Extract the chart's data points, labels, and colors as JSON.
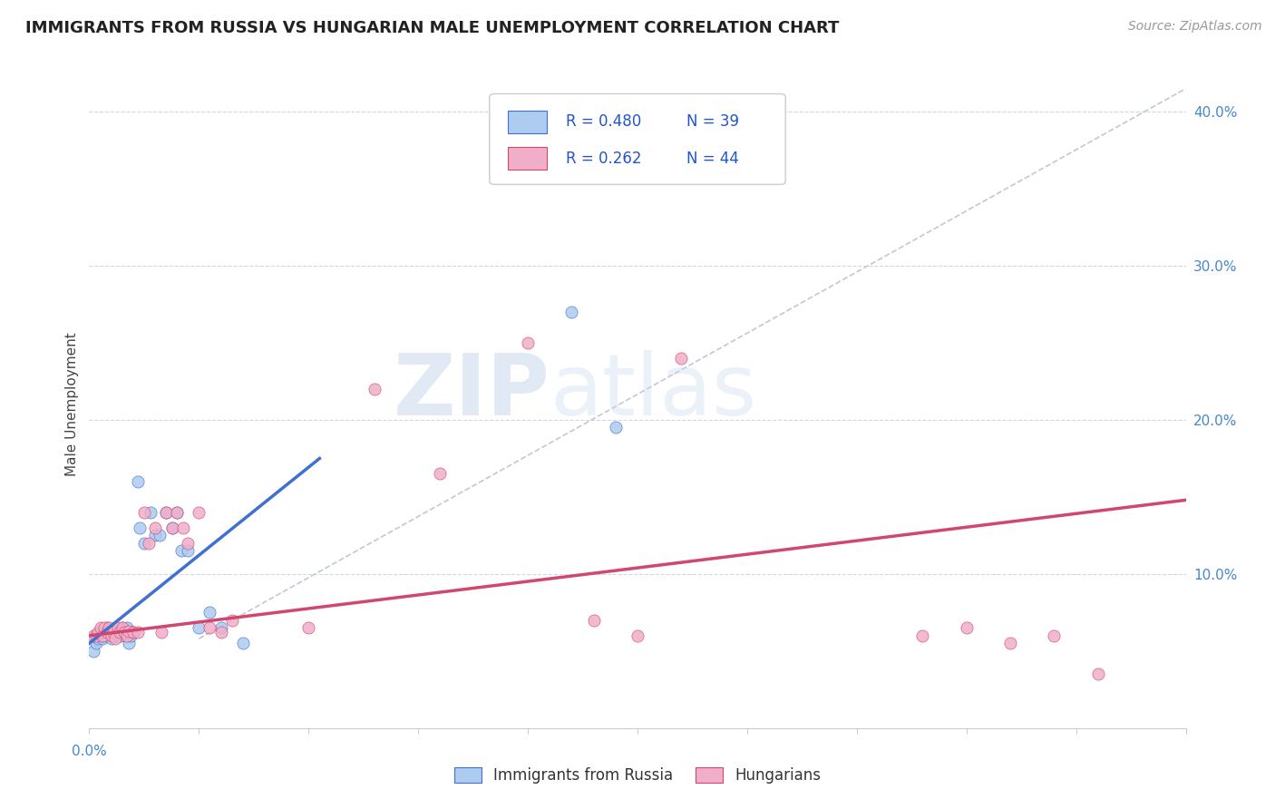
{
  "title": "IMMIGRANTS FROM RUSSIA VS HUNGARIAN MALE UNEMPLOYMENT CORRELATION CHART",
  "source": "Source: ZipAtlas.com",
  "ylabel": "Male Unemployment",
  "color_blue": "#aecbf0",
  "color_pink": "#f0aec8",
  "color_blue_line": "#4070d0",
  "color_pink_line": "#d04870",
  "color_dashed": "#c0c8d8",
  "xlim": [
    0.0,
    0.5
  ],
  "ylim": [
    0.0,
    0.42
  ],
  "legend_r1": "R = 0.480",
  "legend_n1": "N = 39",
  "legend_r2": "R = 0.262",
  "legend_n2": "N = 44",
  "right_yticks": [
    0.1,
    0.2,
    0.3,
    0.4
  ],
  "right_yticklabels": [
    "10.0%",
    "20.0%",
    "30.0%",
    "40.0%"
  ],
  "blue_scatter_x": [
    0.002,
    0.003,
    0.004,
    0.005,
    0.005,
    0.006,
    0.007,
    0.007,
    0.008,
    0.009,
    0.01,
    0.011,
    0.012,
    0.012,
    0.013,
    0.014,
    0.015,
    0.016,
    0.017,
    0.018,
    0.019,
    0.02,
    0.022,
    0.023,
    0.025,
    0.028,
    0.03,
    0.032,
    0.035,
    0.038,
    0.04,
    0.042,
    0.045,
    0.05,
    0.055,
    0.06,
    0.07,
    0.22,
    0.24
  ],
  "blue_scatter_y": [
    0.05,
    0.055,
    0.058,
    0.06,
    0.062,
    0.058,
    0.062,
    0.06,
    0.065,
    0.062,
    0.058,
    0.063,
    0.062,
    0.06,
    0.062,
    0.06,
    0.065,
    0.06,
    0.065,
    0.055,
    0.06,
    0.062,
    0.16,
    0.13,
    0.12,
    0.14,
    0.125,
    0.125,
    0.14,
    0.13,
    0.14,
    0.115,
    0.115,
    0.065,
    0.075,
    0.065,
    0.055,
    0.27,
    0.195
  ],
  "pink_scatter_x": [
    0.002,
    0.003,
    0.004,
    0.005,
    0.006,
    0.007,
    0.008,
    0.009,
    0.01,
    0.011,
    0.012,
    0.013,
    0.014,
    0.015,
    0.016,
    0.017,
    0.018,
    0.02,
    0.022,
    0.025,
    0.027,
    0.03,
    0.033,
    0.035,
    0.038,
    0.04,
    0.043,
    0.045,
    0.05,
    0.055,
    0.06,
    0.065,
    0.1,
    0.13,
    0.16,
    0.2,
    0.23,
    0.25,
    0.27,
    0.38,
    0.4,
    0.42,
    0.44,
    0.46
  ],
  "pink_scatter_y": [
    0.06,
    0.06,
    0.062,
    0.065,
    0.06,
    0.065,
    0.062,
    0.065,
    0.06,
    0.062,
    0.058,
    0.065,
    0.062,
    0.065,
    0.062,
    0.06,
    0.063,
    0.062,
    0.062,
    0.14,
    0.12,
    0.13,
    0.062,
    0.14,
    0.13,
    0.14,
    0.13,
    0.12,
    0.14,
    0.065,
    0.062,
    0.07,
    0.065,
    0.22,
    0.165,
    0.25,
    0.07,
    0.06,
    0.24,
    0.06,
    0.065,
    0.055,
    0.06,
    0.035
  ],
  "blue_line_x": [
    0.0,
    0.105
  ],
  "blue_line_y": [
    0.055,
    0.175
  ],
  "pink_line_x": [
    0.0,
    0.5
  ],
  "pink_line_y": [
    0.06,
    0.148
  ],
  "diag_line_x": [
    0.05,
    0.5
  ],
  "diag_line_y": [
    0.058,
    0.415
  ]
}
